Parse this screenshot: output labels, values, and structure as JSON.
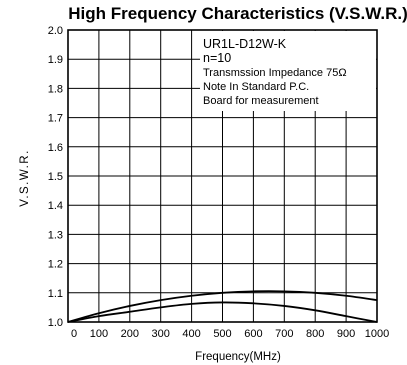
{
  "chart_data": {
    "type": "line",
    "title": "High Frequency Characteristics (V.S.W.R.)",
    "xlabel": "Frequency(MHz)",
    "ylabel": "V.S.W.R.",
    "xlim": [
      0,
      1000
    ],
    "ylim": [
      1.0,
      2.0
    ],
    "x_ticks": [
      "0",
      "100",
      "200",
      "300",
      "400",
      "500",
      "600",
      "700",
      "800",
      "900",
      "1000"
    ],
    "y_ticks": [
      "1.0",
      "1.1",
      "1.2",
      "1.3",
      "1.4",
      "1.5",
      "1.6",
      "1.7",
      "1.8",
      "1.9",
      "2.0"
    ],
    "grid": true,
    "annotation": [
      "UR1L-D12W-K",
      "n=10",
      "Transmssion Impedance 75Ω",
      "Note In Standard P.C.",
      "Board for measurement"
    ],
    "series": [
      {
        "x": [
          0,
          100,
          200,
          300,
          400,
          500,
          600,
          700,
          800,
          900,
          1000
        ],
        "y": [
          1.0,
          1.03,
          1.055,
          1.075,
          1.09,
          1.1,
          1.105,
          1.105,
          1.1,
          1.09,
          1.075
        ]
      },
      {
        "x": [
          0,
          100,
          200,
          300,
          400,
          500,
          600,
          700,
          800,
          900,
          1000
        ],
        "y": [
          1.0,
          1.02,
          1.035,
          1.05,
          1.062,
          1.067,
          1.064,
          1.055,
          1.04,
          1.02,
          1.0
        ]
      }
    ]
  }
}
